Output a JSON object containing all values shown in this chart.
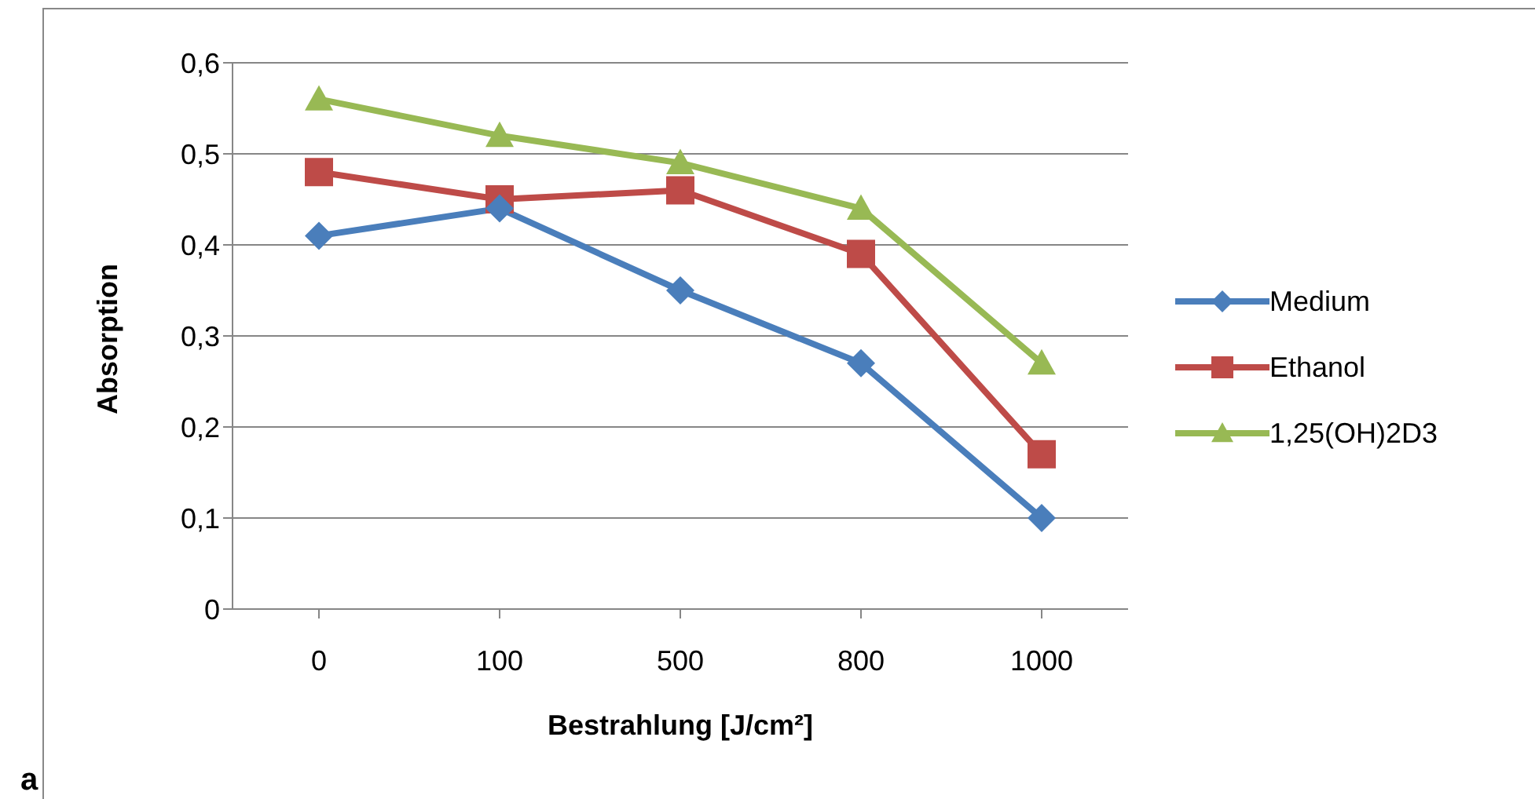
{
  "chart_data": {
    "type": "line",
    "xlabel": "Bestrahlung [J/cm²]",
    "ylabel": "Absorption",
    "categories": [
      "0",
      "100",
      "500",
      "800",
      "1000"
    ],
    "series": [
      {
        "name": "Medium",
        "color": "#4a7ebb",
        "marker": "diamond",
        "values": [
          0.41,
          0.44,
          0.35,
          0.27,
          0.1
        ]
      },
      {
        "name": "Ethanol",
        "color": "#be4b48",
        "marker": "square",
        "values": [
          0.48,
          0.45,
          0.46,
          0.39,
          0.17
        ]
      },
      {
        "name": "1,25(OH)2D3",
        "color": "#98b954",
        "marker": "triangle",
        "values": [
          0.56,
          0.52,
          0.49,
          0.44,
          0.27
        ]
      }
    ],
    "ylim": [
      0,
      0.6
    ],
    "yticks": [
      0,
      {
        "value": 0.1,
        "label": "0,1"
      },
      {
        "value": 0.2,
        "label": "0,2"
      },
      {
        "value": 0.3,
        "label": "0,3"
      },
      {
        "value": 0.4,
        "label": "0,4"
      },
      {
        "value": 0.5,
        "label": "0,5"
      },
      {
        "value": 0.6,
        "label": "0,6"
      }
    ],
    "grid": "y",
    "legend": "right",
    "line_style": "solid",
    "annotations": [
      "a"
    ]
  }
}
